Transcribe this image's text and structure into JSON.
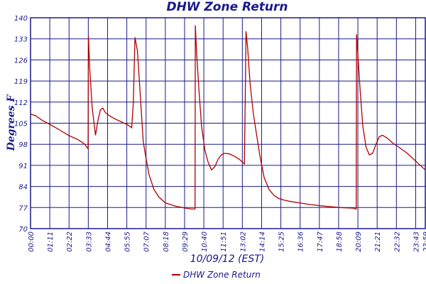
{
  "chart_data": {
    "type": "line",
    "title": "DHW Zone Return",
    "ylabel": "Degrees F",
    "xlabel": "10/09/12 (EST)",
    "ylim": [
      70,
      140
    ],
    "xlim": [
      0,
      24
    ],
    "grid": true,
    "legend_placement": "bottom",
    "y_ticks": [
      "70",
      "77",
      "84",
      "91",
      "98",
      "105",
      "112",
      "119",
      "126",
      "133",
      "140"
    ],
    "x_tick_labels": [
      "00:00",
      "01:11",
      "02:22",
      "03:33",
      "04:44",
      "05:55",
      "07:07",
      "08:18",
      "09:29",
      "10:40",
      "11:51",
      "13:02",
      "14:14",
      "15:25",
      "16:36",
      "17:47",
      "18:58",
      "20:09",
      "21:21",
      "22:32",
      "23:43",
      "23:59"
    ],
    "series": [
      {
        "name": "DHW Zone Return",
        "color": "#b00000",
        "x": [
          0.0,
          0.3,
          0.7,
          1.2,
          1.7,
          2.3,
          2.9,
          3.3,
          3.5,
          3.52,
          3.6,
          3.75,
          3.95,
          4.1,
          4.25,
          4.4,
          4.55,
          4.8,
          5.1,
          5.5,
          5.9,
          6.15,
          6.25,
          6.35,
          6.5,
          6.7,
          6.85,
          7.0,
          7.2,
          7.5,
          7.8,
          8.2,
          8.8,
          9.4,
          9.8,
          10.0,
          10.02,
          10.1,
          10.25,
          10.4,
          10.6,
          10.8,
          11.0,
          11.2,
          11.4,
          11.6,
          11.8,
          12.1,
          12.4,
          12.7,
          12.9,
          13.0,
          13.05,
          13.1,
          13.2,
          13.35,
          13.55,
          13.75,
          13.95,
          14.2,
          14.5,
          14.8,
          15.1,
          15.4,
          15.8,
          16.4,
          17.0,
          17.8,
          18.8,
          19.6,
          19.8,
          19.82,
          19.9,
          20.05,
          20.2,
          20.4,
          20.6,
          20.8,
          21.0,
          21.2,
          21.4,
          21.7,
          22.0,
          22.4,
          22.9,
          23.3,
          23.6,
          24.0
        ],
        "values": [
          108,
          107.5,
          106,
          104.5,
          103,
          101,
          99.5,
          98,
          96.5,
          134,
          123,
          110,
          101,
          106,
          109.5,
          110,
          108.5,
          107.5,
          106.5,
          105.5,
          104.5,
          103.5,
          112,
          133.5,
          129,
          112,
          99,
          94,
          88,
          83,
          80.5,
          78.5,
          77.5,
          76.8,
          76.5,
          76.5,
          137.5,
          128,
          115,
          104,
          96,
          92,
          89.5,
          90.5,
          93,
          94.5,
          95,
          94.8,
          94,
          93,
          92,
          91.5,
          111,
          135.5,
          130,
          118,
          108,
          101,
          94,
          87,
          83,
          81,
          80,
          79.5,
          79,
          78.5,
          78,
          77.5,
          77,
          76.8,
          76.5,
          134.5,
          128,
          115,
          104,
          97,
          94.5,
          95,
          98,
          100.5,
          101,
          100,
          98.5,
          97,
          95,
          93,
          91.5,
          89.5
        ]
      }
    ]
  },
  "legend": {
    "label": "DHW Zone Return"
  }
}
